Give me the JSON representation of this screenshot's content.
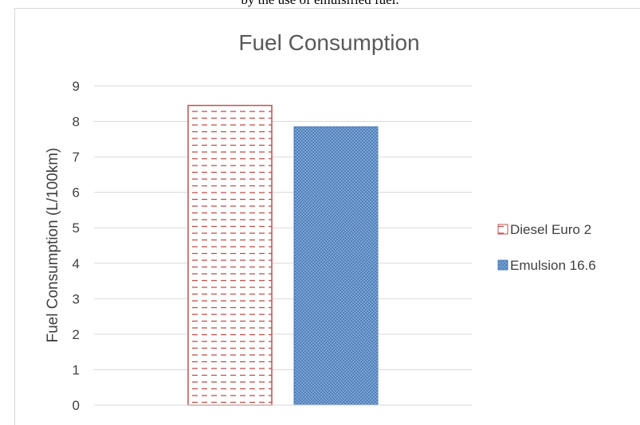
{
  "top_text": "by the use of emulsified fuel.",
  "chart_data": {
    "type": "bar",
    "title": "Fuel Consumption",
    "xlabel": "",
    "ylabel": "Fuel Consumption (L/100km)",
    "categories": [
      ""
    ],
    "ylim": [
      0,
      9
    ],
    "yticks": [
      "0",
      "1",
      "2",
      "3",
      "4",
      "5",
      "6",
      "7",
      "8",
      "9"
    ],
    "grid": true,
    "legend_position": "right",
    "series": [
      {
        "name": "Diesel Euro 2",
        "values": [
          8.45
        ],
        "color": "#c0504d",
        "pattern": "dashes"
      },
      {
        "name": "Emulsion 16.6",
        "values": [
          7.85
        ],
        "color": "#4f81bd",
        "pattern": "dots"
      }
    ]
  },
  "colors": {
    "grid": "#d9d9d9",
    "text": "#404040",
    "title": "#595959"
  }
}
